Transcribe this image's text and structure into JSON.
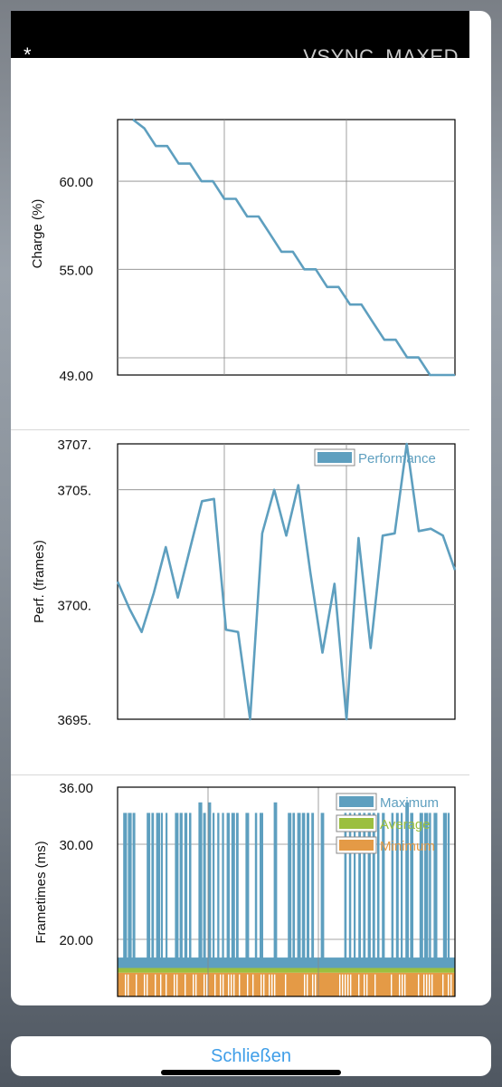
{
  "header": {
    "marker": "*",
    "mode": "VSYNC_MAXED"
  },
  "close_label": "Schließen",
  "colors": {
    "line": "#5e9fbf",
    "average": "#9bbf3f",
    "minimum": "#e49a46",
    "grid": "#888888"
  },
  "chart_data": [
    {
      "type": "line",
      "ylabel": "Charge (%)",
      "ylim": [
        49,
        63.5
      ],
      "yticks": [
        49,
        55,
        60
      ],
      "ytick_labels": [
        "49.00",
        "55.00",
        "60.00"
      ],
      "series": [
        {
          "values": [
            63.5,
            63.0,
            62.0,
            62.0,
            61.0,
            61.0,
            60.0,
            60.0,
            59.0,
            59.0,
            58.0,
            58.0,
            57.0,
            56.0,
            56.0,
            55.0,
            55.0,
            54.0,
            54.0,
            53.0,
            53.0,
            52.0,
            51.0,
            51.0,
            50.0,
            50.0,
            49.0,
            49.0
          ]
        }
      ]
    },
    {
      "type": "line",
      "ylabel": "Perf. (frames)",
      "ylim": [
        3695,
        3707
      ],
      "yticks": [
        3695,
        3700,
        3705,
        3707
      ],
      "ytick_labels": [
        "3695.",
        "3700.",
        "3705.",
        "3707."
      ],
      "legend": [
        {
          "name": "Performance"
        }
      ],
      "series": [
        {
          "name": "Performance",
          "values": [
            3701.0,
            3699.8,
            3698.8,
            3700.5,
            3702.5,
            3700.3,
            3702.4,
            3704.5,
            3704.6,
            3698.9,
            3698.8,
            3695.0,
            3703.1,
            3705.0,
            3703.0,
            3705.2,
            3701.4,
            3697.9,
            3700.9,
            3695.0,
            3702.9,
            3698.1,
            3703.0,
            3703.1,
            3707.0,
            3703.2,
            3703.3,
            3703.0,
            3701.5
          ]
        }
      ]
    },
    {
      "type": "bar",
      "ylabel": "Frametimes (ms)",
      "ylim": [
        14,
        36
      ],
      "yticks": [
        20,
        30,
        36
      ],
      "ytick_labels": [
        "20.00",
        "30.00",
        "36.00"
      ],
      "legend": [
        {
          "name": "Maximum"
        },
        {
          "name": "Average"
        },
        {
          "name": "Minimum"
        }
      ],
      "series": [
        {
          "name": "Maximum",
          "baseline": 17.8,
          "spike_value": 33.3
        },
        {
          "name": "Average",
          "value": 16.8
        },
        {
          "name": "Minimum",
          "value": 16.5
        }
      ]
    }
  ]
}
